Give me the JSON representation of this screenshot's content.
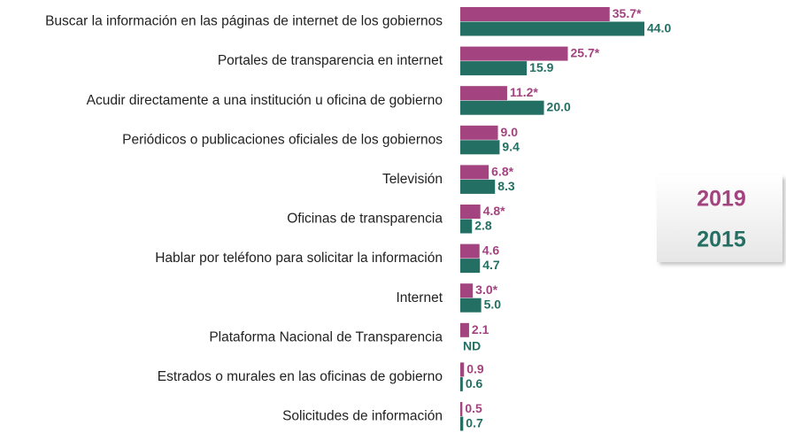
{
  "chart_data": {
    "type": "bar",
    "orientation": "horizontal",
    "categories": [
      "Buscar la información en las páginas de internet de los gobiernos",
      "Portales de transparencia en internet",
      "Acudir directamente a una institución u oficina de gobierno",
      "Periódicos o publicaciones oficiales de los gobiernos",
      "Televisión",
      "Oficinas de transparencia",
      "Hablar por teléfono para solicitar la información",
      "Internet",
      "Plataforma Nacional de Transparencia",
      "Estrados o murales en las oficinas de gobierno",
      "Solicitudes de información"
    ],
    "series": [
      {
        "name": "2019",
        "color": "#a3437f",
        "values": [
          35.7,
          25.7,
          11.2,
          9.0,
          6.8,
          4.8,
          4.6,
          3.0,
          2.1,
          0.9,
          0.5
        ],
        "value_labels": [
          "35.7*",
          "25.7*",
          "11.2*",
          "9.0",
          "6.8*",
          "4.8*",
          "4.6",
          "3.0*",
          "2.1",
          "0.9",
          "0.5"
        ]
      },
      {
        "name": "2015",
        "color": "#246f63",
        "values": [
          44.0,
          15.9,
          20.0,
          9.4,
          8.3,
          2.8,
          4.7,
          5.0,
          null,
          0.6,
          0.7
        ],
        "value_labels": [
          "44.0",
          "15.9",
          "20.0",
          "9.4",
          "8.3",
          "2.8",
          "4.7",
          "5.0",
          "ND",
          "0.6",
          "0.7"
        ]
      }
    ],
    "legend": "right"
  }
}
